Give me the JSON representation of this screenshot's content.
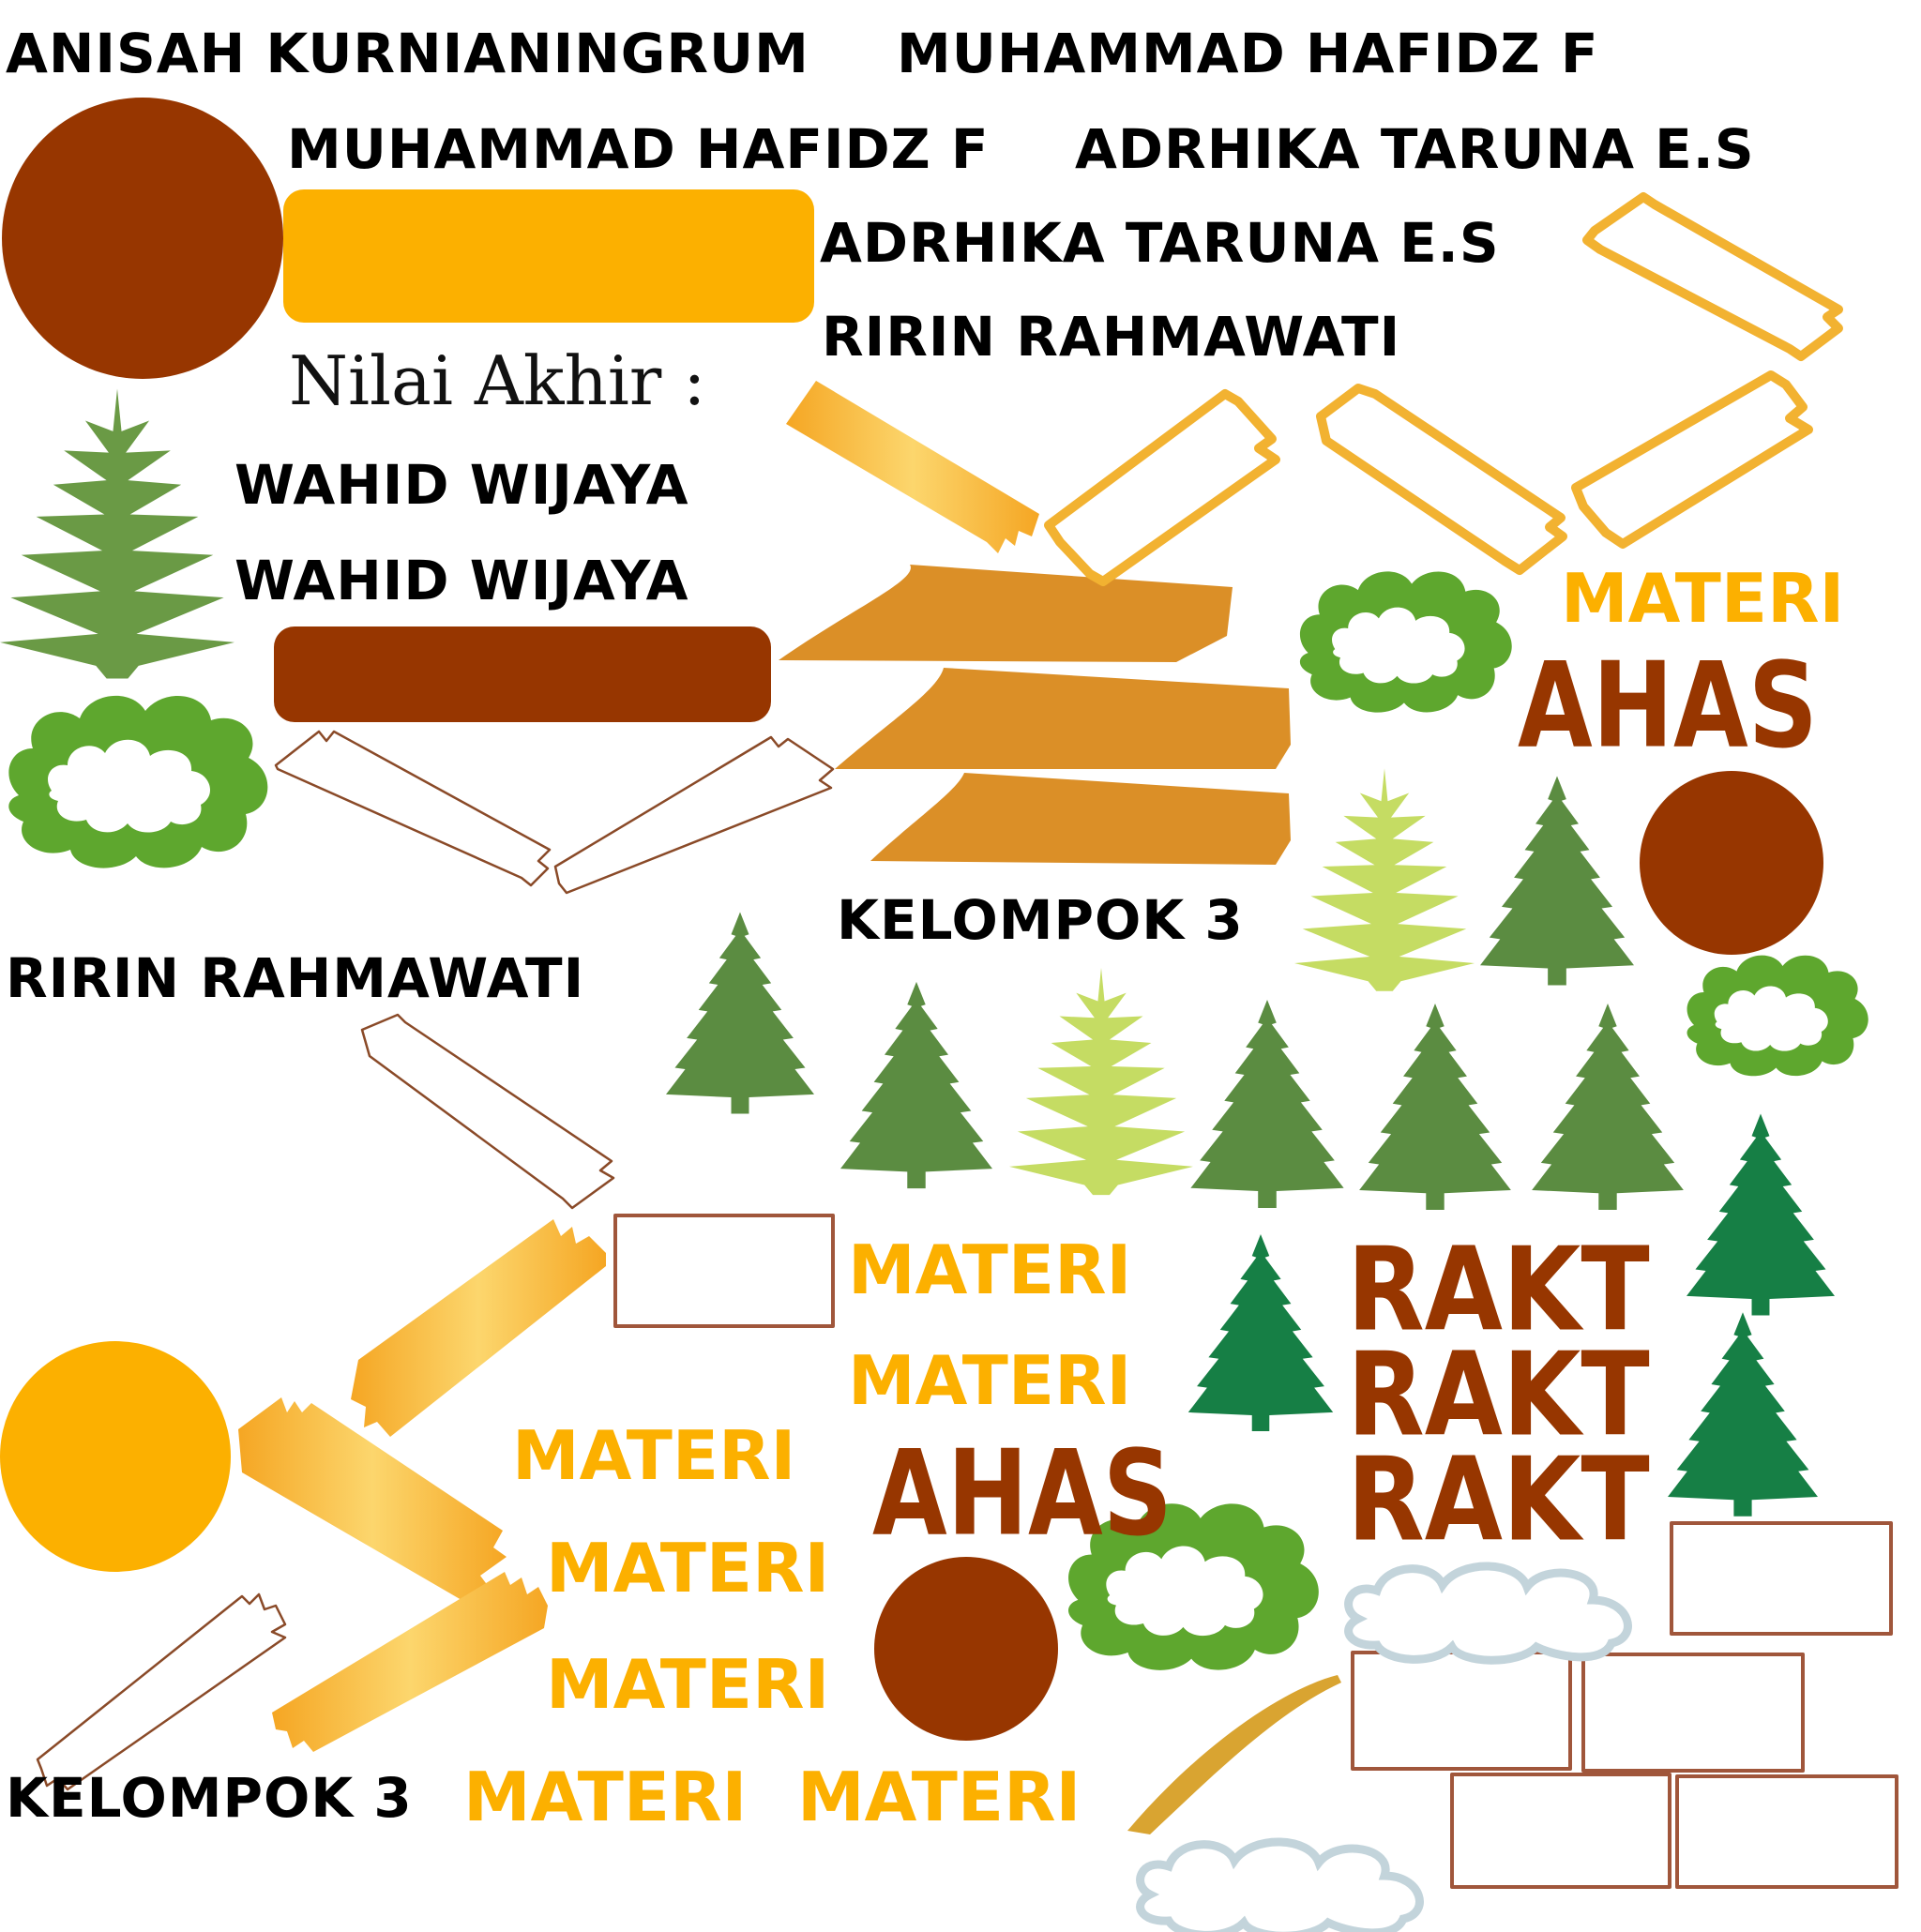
{
  "texts": {
    "anisah": "ANISAH KURNIANINGRUM",
    "hafidz_top": "MUHAMMAD HAFIDZ F",
    "hafidz_2": "MUHAMMAD HAFIDZ F",
    "adrhika_1": "ADRHIKA TARUNA E.S",
    "adrhika_2": "ADRHIKA TARUNA E.S",
    "ririn_1": "RIRIN RAHMAWATI",
    "ririn_2": "RIRIN RAHMAWATI",
    "nilai_akhir": "Nilai Akhir :",
    "wahid_1": "WAHID WIJAYA",
    "wahid_2": "WAHID WIJAYA",
    "kelompok_1": "KELOMPOK 3",
    "kelompok_2": "KELOMPOK 3",
    "materi": [
      "MATERI",
      "MATERI",
      "MATERI",
      "MATERI",
      "MATERI",
      "MATERI",
      "MATERI",
      "MATERI"
    ],
    "ahas_1": "AHAS",
    "ahas_2": "AHAS",
    "rakt": [
      "RAKT",
      "RAKT",
      "RAKT"
    ]
  },
  "colors": {
    "brown": "#973600",
    "gold": "#fcb000",
    "orange": "#db8f27",
    "tape_light": "#fbd46a",
    "tree_green": "#5b8c41",
    "tree_dark": "#167f45",
    "tree_light": "#c5dc63",
    "bush_green": "#5ea72e",
    "frame_brown": "#a0563b",
    "cloud_blue": "#c3d4db"
  }
}
